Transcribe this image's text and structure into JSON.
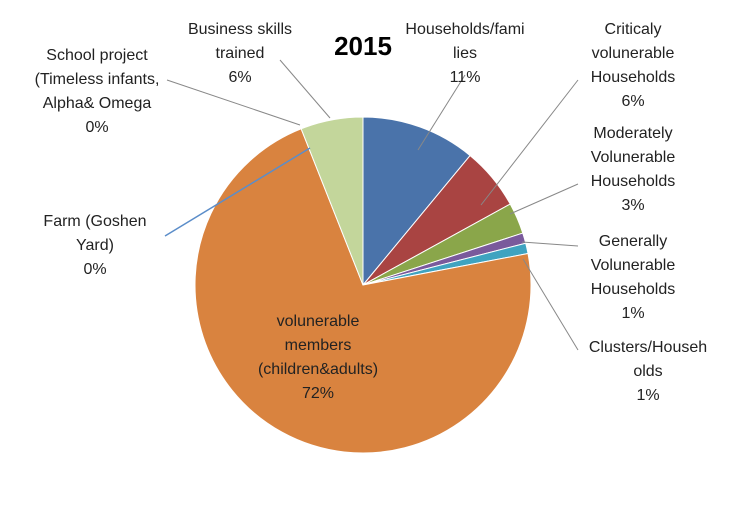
{
  "chart_data": {
    "type": "pie",
    "title": "2015",
    "slices": [
      {
        "label": "Households/families",
        "label_lines": [
          "Households/fami",
          "lies"
        ],
        "value": 11,
        "pct_label": "11%",
        "color": "#4A73AA"
      },
      {
        "label": "Criticaly volunerable Households",
        "label_lines": [
          "Criticaly",
          "volunerable",
          "Households"
        ],
        "value": 6,
        "pct_label": "6%",
        "color": "#A94442"
      },
      {
        "label": "Moderately Volunerable Households",
        "label_lines": [
          "Moderately",
          "Volunerable",
          "Households"
        ],
        "value": 3,
        "pct_label": "3%",
        "color": "#8AA64A"
      },
      {
        "label": "Generally Volunerable Households",
        "label_lines": [
          "Generally",
          "Volunerable",
          "Households"
        ],
        "value": 1,
        "pct_label": "1%",
        "color": "#7A5A9C"
      },
      {
        "label": "Clusters/Households",
        "label_lines": [
          "Clusters/Househ",
          "olds"
        ],
        "value": 1,
        "pct_label": "1%",
        "color": "#3FA3C0"
      },
      {
        "label": "volunerable members (children&adults)",
        "label_lines": [
          "volunerable",
          "members",
          "(children&adults)"
        ],
        "value": 72,
        "pct_label": "72%",
        "color": "#D9833F"
      },
      {
        "label": "Farm (Goshen Yard)",
        "label_lines": [
          "Farm (Goshen",
          "Yard)"
        ],
        "value": 0,
        "pct_label": "0%",
        "color": "#5B8DC9"
      },
      {
        "label": "School project (Timeless infants, Alpha& Omega",
        "label_lines": [
          "School project",
          "(Timeless infants,",
          "Alpha& Omega"
        ],
        "value": 0,
        "pct_label": "0%",
        "color": "#888888"
      },
      {
        "label": "Business skills trained",
        "label_lines": [
          "Business skills",
          "trained"
        ],
        "value": 6,
        "pct_label": "6%",
        "color": "#C3D69B"
      }
    ]
  }
}
